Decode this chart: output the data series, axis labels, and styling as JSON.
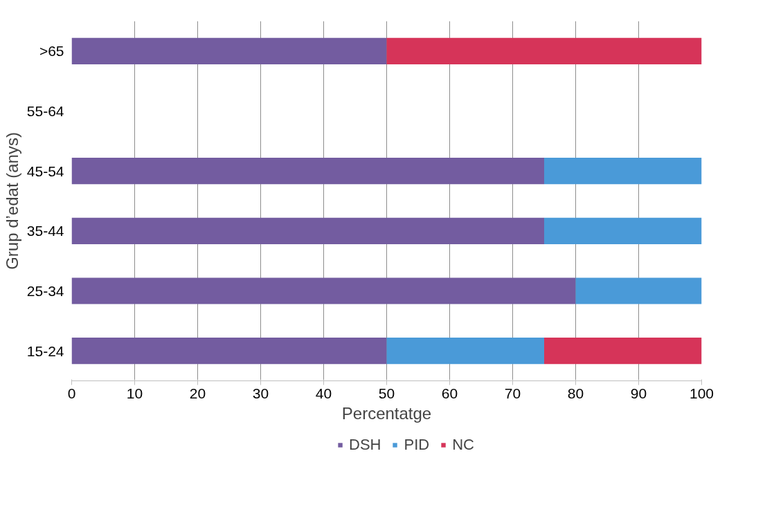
{
  "chart_data": {
    "type": "bar",
    "orientation": "horizontal",
    "stacked": true,
    "categories": [
      ">65",
      "55-64",
      "45-54",
      "35-44",
      "25-34",
      "15-24"
    ],
    "series": [
      {
        "name": "DSH",
        "color": "#735ca0",
        "values": [
          50,
          null,
          75,
          75,
          80,
          50
        ]
      },
      {
        "name": "PID",
        "color": "#4a9ad8",
        "values": [
          null,
          null,
          25,
          25,
          20,
          25
        ]
      },
      {
        "name": "NC",
        "color": "#d63459",
        "values": [
          50,
          null,
          null,
          null,
          null,
          25
        ]
      }
    ],
    "xlabel": "Percentatge",
    "ylabel": "Grup d’edat (anys)",
    "xlim": [
      0,
      100
    ],
    "xticks": [
      0,
      10,
      20,
      30,
      40,
      50,
      60,
      70,
      80,
      90,
      100
    ],
    "grid": "x",
    "legend": "bottom"
  }
}
